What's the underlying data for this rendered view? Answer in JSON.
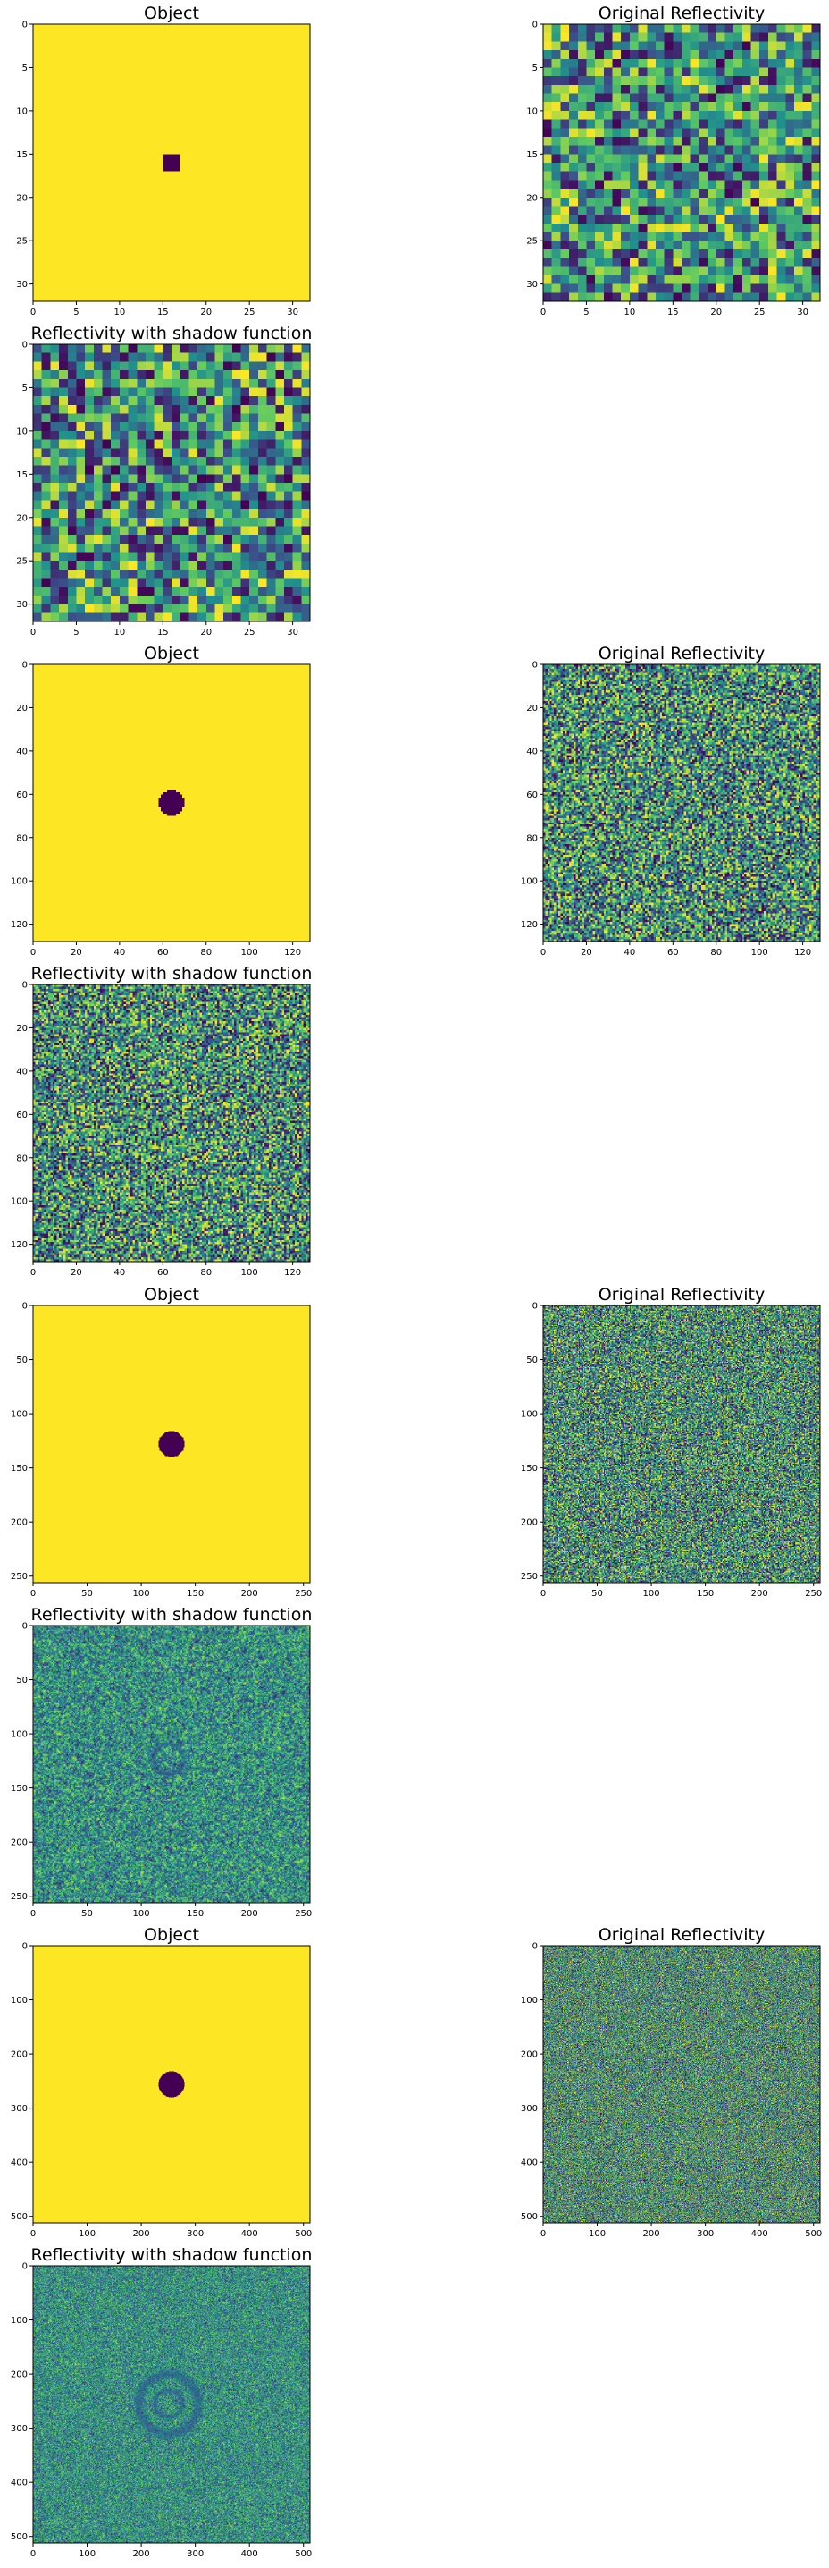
{
  "colors": {
    "cmap": [
      "#440154",
      "#3b528b",
      "#21918c",
      "#5ec962",
      "#fde725"
    ],
    "object_background": "#fde725",
    "object_foreground": "#440154"
  },
  "chart_data": [
    {
      "type": "heatmap",
      "title": "Object",
      "grid_size": 32,
      "xlim": [
        0,
        32
      ],
      "ylim": [
        32,
        0
      ],
      "xticks": [
        0,
        5,
        10,
        15,
        20,
        25,
        30
      ],
      "yticks": [
        0,
        5,
        10,
        15,
        20,
        25,
        30
      ],
      "object": {
        "shape": "square",
        "center": [
          15.5,
          15.5
        ],
        "half_width": 1
      },
      "colorbar": false
    },
    {
      "type": "heatmap",
      "title": "Original Reflectivity",
      "grid_size": 32,
      "xlim": [
        0,
        32
      ],
      "ylim": [
        32,
        0
      ],
      "xticks": [
        0,
        5,
        10,
        15,
        20,
        25,
        30
      ],
      "yticks": [
        0,
        5,
        10,
        15,
        20,
        25,
        30
      ],
      "values": "random-uniform"
    },
    {
      "type": "heatmap",
      "title": "Reflectivity with shadow function",
      "grid_size": 32,
      "xlim": [
        0,
        32
      ],
      "ylim": [
        32,
        0
      ],
      "xticks": [
        0,
        5,
        10,
        15,
        20,
        25,
        30
      ],
      "yticks": [
        0,
        5,
        10,
        15,
        20,
        25,
        30
      ],
      "values": "random-uniform"
    },
    {
      "type": "heatmap",
      "title": "Object",
      "grid_size": 128,
      "xlim": [
        0,
        128
      ],
      "ylim": [
        128,
        0
      ],
      "xticks": [
        0,
        20,
        40,
        60,
        80,
        100,
        120
      ],
      "yticks": [
        0,
        20,
        40,
        60,
        80,
        100,
        120
      ],
      "object": {
        "shape": "disk",
        "center": [
          63.5,
          63.5
        ],
        "radius": 6
      }
    },
    {
      "type": "heatmap",
      "title": "Original Reflectivity",
      "grid_size": 128,
      "xlim": [
        0,
        128
      ],
      "ylim": [
        128,
        0
      ],
      "xticks": [
        0,
        20,
        40,
        60,
        80,
        100,
        120
      ],
      "yticks": [
        0,
        20,
        40,
        60,
        80,
        100,
        120
      ],
      "values": "random-uniform"
    },
    {
      "type": "heatmap",
      "title": "Reflectivity with shadow function",
      "grid_size": 128,
      "xlim": [
        0,
        128
      ],
      "ylim": [
        128,
        0
      ],
      "xticks": [
        0,
        20,
        40,
        60,
        80,
        100,
        120
      ],
      "yticks": [
        0,
        20,
        40,
        60,
        80,
        100,
        120
      ],
      "values": "random-uniform"
    },
    {
      "type": "heatmap",
      "title": "Object",
      "grid_size": 256,
      "xlim": [
        0,
        256
      ],
      "ylim": [
        256,
        0
      ],
      "xticks": [
        0,
        50,
        100,
        150,
        200,
        250
      ],
      "yticks": [
        0,
        50,
        100,
        150,
        200,
        250
      ],
      "object": {
        "shape": "disk",
        "center": [
          127.5,
          127.5
        ],
        "radius": 12
      }
    },
    {
      "type": "heatmap",
      "title": "Original Reflectivity",
      "grid_size": 256,
      "xlim": [
        0,
        256
      ],
      "ylim": [
        256,
        0
      ],
      "xticks": [
        0,
        50,
        100,
        150,
        200,
        250
      ],
      "yticks": [
        0,
        50,
        100,
        150,
        200,
        250
      ],
      "values": "random-uniform"
    },
    {
      "type": "heatmap",
      "title": "Reflectivity with shadow function",
      "grid_size": 256,
      "xlim": [
        0,
        256
      ],
      "ylim": [
        256,
        0
      ],
      "xticks": [
        0,
        50,
        100,
        150,
        200,
        250
      ],
      "yticks": [
        0,
        50,
        100,
        150,
        200,
        250
      ],
      "values": "random-smoothed",
      "ring": {
        "center": [
          125,
          123
        ],
        "radius": 14
      }
    },
    {
      "type": "heatmap",
      "title": "Object",
      "grid_size": 512,
      "xlim": [
        0,
        512
      ],
      "ylim": [
        512,
        0
      ],
      "xticks": [
        0,
        100,
        200,
        300,
        400,
        500
      ],
      "yticks": [
        0,
        100,
        200,
        300,
        400,
        500
      ],
      "object": {
        "shape": "disk",
        "center": [
          255.5,
          255.5
        ],
        "radius": 24
      }
    },
    {
      "type": "heatmap",
      "title": "Original Reflectivity",
      "grid_size": 512,
      "xlim": [
        0,
        512
      ],
      "ylim": [
        512,
        0
      ],
      "xticks": [
        0,
        100,
        200,
        300,
        400,
        500
      ],
      "yticks": [
        0,
        100,
        200,
        300,
        400,
        500
      ],
      "values": "random-uniform"
    },
    {
      "type": "heatmap",
      "title": "Reflectivity with shadow function",
      "grid_size": 512,
      "xlim": [
        0,
        512
      ],
      "ylim": [
        512,
        0
      ],
      "xticks": [
        0,
        100,
        200,
        300,
        400,
        500
      ],
      "yticks": [
        0,
        100,
        200,
        300,
        400,
        500
      ],
      "values": "random-smoothed",
      "ring": {
        "center": [
          250,
          255
        ],
        "radius": 55
      },
      "ring2": {
        "center": [
          250,
          255
        ],
        "radius": 25
      }
    }
  ]
}
